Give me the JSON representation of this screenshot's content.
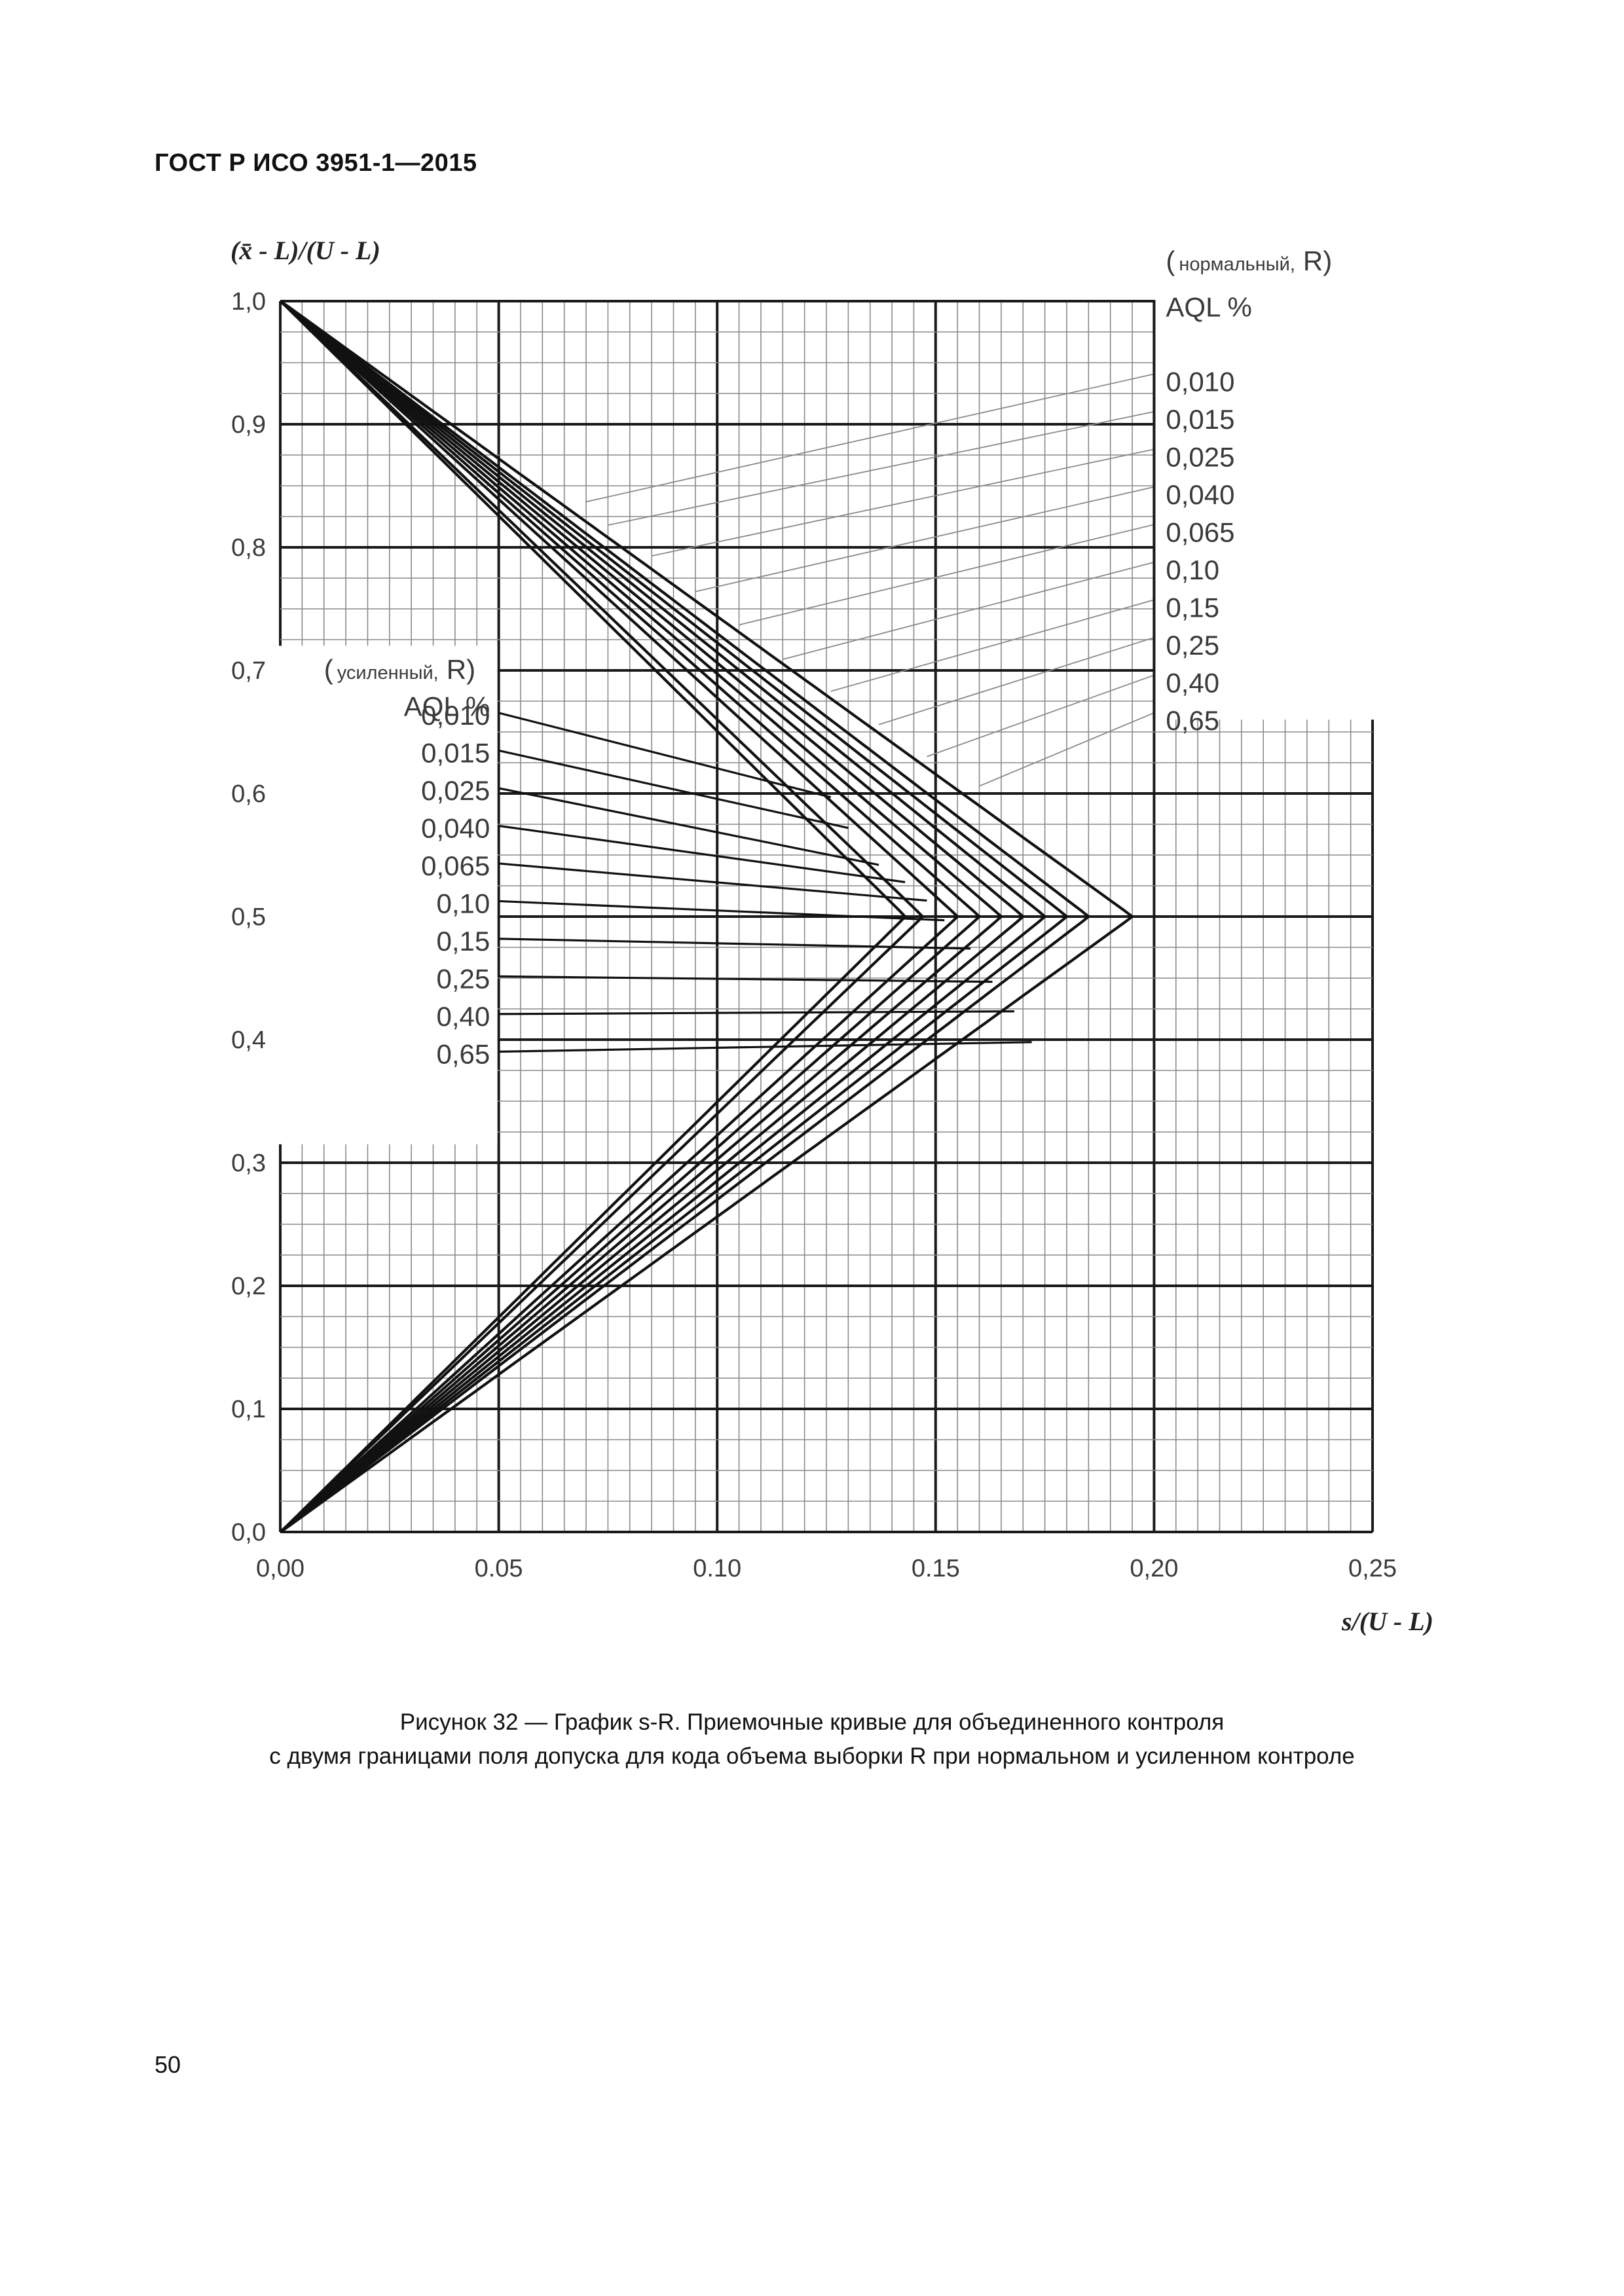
{
  "header": {
    "title": "ГОСТ Р ИСО 3951-1—2015"
  },
  "caption": {
    "line1": "Рисунок 32 — График s-R. Приемочные кривые для объединенного контроля",
    "line2": "с двумя границами поля допуска для кода объема выборки R при нормальном и усиленном контроле"
  },
  "page_number": "50",
  "chart_data": {
    "type": "line",
    "title": "",
    "ylabel": "(x̄ - L)/(U - L)",
    "xlabel": "s/(U - L)",
    "xlim": [
      0,
      0.25
    ],
    "ylim": [
      0,
      1.0
    ],
    "x_ticks": [
      "0,00",
      "0.05",
      "0.10",
      "0.15",
      "0,20",
      "0,25"
    ],
    "y_ticks": [
      "0,0",
      "0,1",
      "0,2",
      "0,3",
      "0,4",
      "0,5",
      "0,6",
      "0,7",
      "0,8",
      "0,9",
      "1,0"
    ],
    "grid": true,
    "legends": {
      "normal": {
        "heading_open": "(",
        "heading_mode": "нормальный,",
        "heading_code": "R)",
        "subheading": "AQL %",
        "placement": "top-right"
      },
      "tightened": {
        "heading_open": "(",
        "heading_mode": "усиленный,",
        "heading_code": "R)",
        "subheading": "AQL %",
        "placement": "center-left"
      }
    },
    "series": [
      {
        "name": "0,010",
        "peak_s": 0.143,
        "normal_pointer": {
          "x": 0.07,
          "y": 0.837
        },
        "tightened_pointer": {
          "x": 0.126,
          "y": 0.597
        }
      },
      {
        "name": "0,015",
        "peak_s": 0.147,
        "normal_pointer": {
          "x": 0.075,
          "y": 0.818
        },
        "tightened_pointer": {
          "x": 0.13,
          "y": 0.572
        }
      },
      {
        "name": "0,025",
        "peak_s": 0.155,
        "normal_pointer": {
          "x": 0.085,
          "y": 0.793
        },
        "tightened_pointer": {
          "x": 0.137,
          "y": 0.542
        }
      },
      {
        "name": "0,040",
        "peak_s": 0.16,
        "normal_pointer": {
          "x": 0.095,
          "y": 0.764
        },
        "tightened_pointer": {
          "x": 0.143,
          "y": 0.528
        }
      },
      {
        "name": "0,065",
        "peak_s": 0.165,
        "normal_pointer": {
          "x": 0.105,
          "y": 0.737
        },
        "tightened_pointer": {
          "x": 0.148,
          "y": 0.513
        }
      },
      {
        "name": "0,10",
        "peak_s": 0.17,
        "normal_pointer": {
          "x": 0.115,
          "y": 0.709
        },
        "tightened_pointer": {
          "x": 0.152,
          "y": 0.497
        }
      },
      {
        "name": "0,15",
        "peak_s": 0.175,
        "normal_pointer": {
          "x": 0.126,
          "y": 0.683
        },
        "tightened_pointer": {
          "x": 0.158,
          "y": 0.474
        }
      },
      {
        "name": "0,25",
        "peak_s": 0.18,
        "normal_pointer": {
          "x": 0.137,
          "y": 0.656
        },
        "tightened_pointer": {
          "x": 0.163,
          "y": 0.447
        }
      },
      {
        "name": "0,40",
        "peak_s": 0.185,
        "normal_pointer": {
          "x": 0.148,
          "y": 0.63
        },
        "tightened_pointer": {
          "x": 0.168,
          "y": 0.423
        }
      },
      {
        "name": "0,65",
        "peak_s": 0.195,
        "normal_pointer": {
          "x": 0.16,
          "y": 0.606
        },
        "tightened_pointer": {
          "x": 0.172,
          "y": 0.398
        }
      }
    ]
  }
}
